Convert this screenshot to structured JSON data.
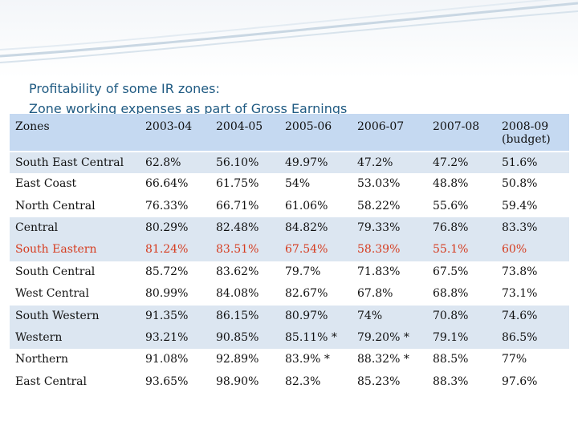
{
  "title": {
    "line1": "Profitability of some IR zones:",
    "line2": "Zone working expenses as part of Gross Earnings"
  },
  "table": {
    "headers": [
      "Zones",
      "2003-04",
      "2004-05",
      "2005-06",
      "2006-07",
      "2007-08",
      "2008-09 (budget)"
    ],
    "rows": [
      {
        "zone": "South East Central",
        "values": [
          "62.8%",
          "56.10%",
          "49.97%",
          "47.2%",
          "47.2%",
          "51.6%"
        ],
        "highlight": false
      },
      {
        "zone": "East Coast",
        "values": [
          "66.64%",
          "61.75%",
          "54%",
          "53.03%",
          "48.8%",
          "50.8%"
        ],
        "highlight": false
      },
      {
        "zone": "North Central",
        "values": [
          "76.33%",
          "66.71%",
          "61.06%",
          "58.22%",
          "55.6%",
          "59.4%"
        ],
        "highlight": false
      },
      {
        "zone": "Central",
        "values": [
          "80.29%",
          "82.48%",
          "84.82%",
          "79.33%",
          "76.8%",
          "83.3%"
        ],
        "highlight": false
      },
      {
        "zone": "South Eastern",
        "values": [
          "81.24%",
          "83.51%",
          "67.54%",
          "58.39%",
          "55.1%",
          "60%"
        ],
        "highlight": true,
        "highlight_color": "#d63c1f"
      },
      {
        "zone": "South Central",
        "values": [
          "85.72%",
          "83.62%",
          "79.7%",
          "71.83%",
          "67.5%",
          "73.8%"
        ],
        "highlight": false
      },
      {
        "zone": "West Central",
        "values": [
          "80.99%",
          "84.08%",
          "82.67%",
          "67.8%",
          "68.8%",
          "73.1%"
        ],
        "highlight": false
      },
      {
        "zone": "South Western",
        "values": [
          "91.35%",
          "86.15%",
          "80.97%",
          "74%",
          "70.8%",
          "74.6%"
        ],
        "highlight": false
      },
      {
        "zone": "Western",
        "values": [
          "93.21%",
          "90.85%",
          "85.11% *",
          "79.20% *",
          "79.1%",
          "86.5%"
        ],
        "highlight": false
      },
      {
        "zone": "Northern",
        "values": [
          "91.08%",
          "92.89%",
          "83.9% *",
          "88.32% *",
          "88.5%",
          "77%"
        ],
        "highlight": false
      },
      {
        "zone": "East Central",
        "values": [
          "93.65%",
          "98.90%",
          "82.3%",
          "85.23%",
          "88.3%",
          "97.6%"
        ],
        "highlight": false
      }
    ]
  }
}
